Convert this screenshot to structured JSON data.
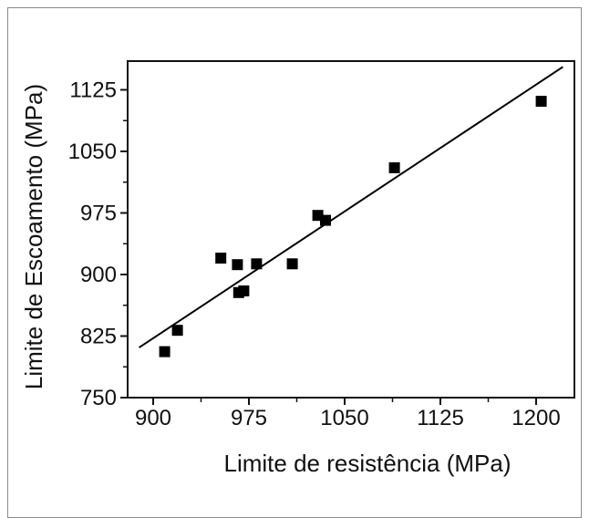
{
  "chart_data": {
    "type": "scatter",
    "title": "",
    "xlabel": "Limite de resistência (MPa)",
    "ylabel": "Limite de Escoamento (MPa)",
    "xlim": [
      880,
      1230
    ],
    "ylim": [
      750,
      1160
    ],
    "x_ticks": [
      900,
      975,
      1050,
      1125,
      1200
    ],
    "y_ticks": [
      750,
      825,
      900,
      975,
      1050,
      1125
    ],
    "x_tick_labels": [
      "900",
      "975",
      "1050",
      "1125",
      "1200"
    ],
    "y_tick_labels": [
      "750",
      "825",
      "900",
      "975",
      "1050",
      "1125"
    ],
    "grid": false,
    "series": [
      {
        "marker": "square",
        "color": "#000000",
        "points": [
          {
            "x": 909,
            "y": 806
          },
          {
            "x": 919,
            "y": 832
          },
          {
            "x": 953,
            "y": 920
          },
          {
            "x": 966,
            "y": 912
          },
          {
            "x": 967,
            "y": 878
          },
          {
            "x": 971,
            "y": 880
          },
          {
            "x": 981,
            "y": 913
          },
          {
            "x": 1009,
            "y": 913
          },
          {
            "x": 1029,
            "y": 972
          },
          {
            "x": 1035,
            "y": 966
          },
          {
            "x": 1089,
            "y": 1030
          },
          {
            "x": 1204,
            "y": 1111
          }
        ]
      }
    ],
    "fit_line": {
      "color": "#000000",
      "from": {
        "x": 889,
        "y": 811
      },
      "to": {
        "x": 1221,
        "y": 1153
      }
    }
  }
}
